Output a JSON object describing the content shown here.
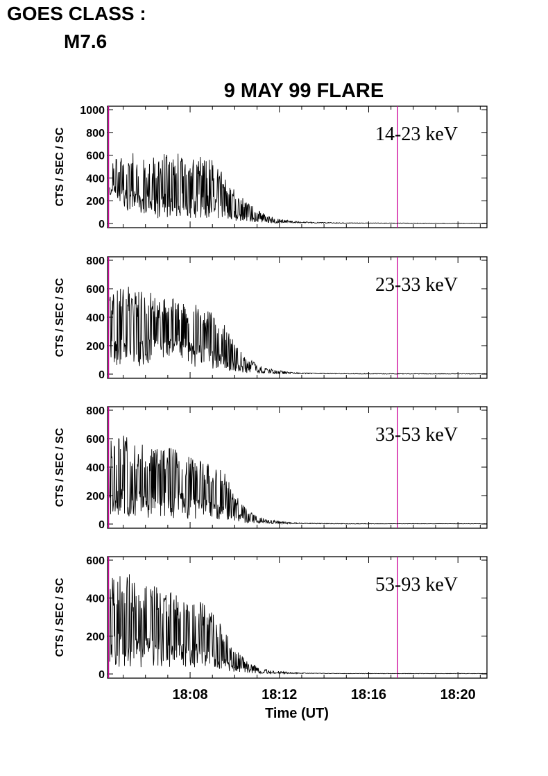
{
  "header": {
    "goes_label": "GOES CLASS :",
    "goes_class": "M7.6"
  },
  "colors": {
    "trace": "#000000",
    "marker": "#cc0099"
  },
  "chart_data": {
    "type": "line",
    "title": "9 MAY 99 FLARE",
    "xlabel": "Time (UT)",
    "x_units": "minutes after 18:00 UT",
    "xlim": [
      4.3,
      21.3
    ],
    "x_ticks": [
      {
        "value": 8,
        "label": "18:08"
      },
      {
        "value": 12,
        "label": "18:12"
      },
      {
        "value": 16,
        "label": "18:16"
      },
      {
        "value": 20,
        "label": "18:20"
      }
    ],
    "marker_times": [
      4.35,
      17.3
    ],
    "grid": false,
    "panels": [
      {
        "band": "14-23 keV",
        "ylabel": "CTS / SEC / SC",
        "ylim": [
          0,
          1000
        ],
        "y_ticks": [
          "0",
          "200",
          "400",
          "600",
          "800",
          "1000"
        ],
        "series": {
          "x": [
            4.4,
            5.0,
            5.5,
            6.0,
            6.5,
            7.0,
            7.5,
            8.0,
            8.5,
            9.0,
            9.5,
            10.0,
            10.5,
            11.0,
            11.5,
            12.0,
            12.5,
            13.0,
            14.0,
            15.0,
            17.0,
            19.0,
            21.3
          ],
          "values": [
            380,
            360,
            340,
            320,
            300,
            320,
            330,
            300,
            310,
            290,
            240,
            160,
            100,
            60,
            35,
            22,
            15,
            10,
            6,
            4,
            3,
            2,
            2
          ],
          "peak_values": [
            540,
            600,
            620,
            560,
            600,
            620,
            640,
            560,
            600,
            560,
            440,
            300,
            200,
            120,
            70,
            40,
            25,
            15,
            10,
            6,
            5,
            4,
            4
          ]
        }
      },
      {
        "band": "23-33 keV",
        "ylabel": "CTS / SEC / SC",
        "ylim": [
          0,
          800
        ],
        "y_ticks": [
          "0",
          "200",
          "400",
          "600",
          "800"
        ],
        "series": {
          "x": [
            4.4,
            5.0,
            5.5,
            6.0,
            6.5,
            7.0,
            7.5,
            8.0,
            8.5,
            9.0,
            9.5,
            10.0,
            10.5,
            11.0,
            11.5,
            12.0,
            12.5,
            13.0,
            14.0,
            15.0,
            17.0,
            19.0,
            21.3
          ],
          "values": [
            280,
            300,
            300,
            310,
            320,
            330,
            320,
            280,
            260,
            230,
            180,
            110,
            60,
            35,
            20,
            12,
            8,
            6,
            4,
            3,
            2,
            2,
            2
          ],
          "peak_values": [
            560,
            640,
            600,
            600,
            560,
            540,
            520,
            500,
            480,
            440,
            360,
            220,
            120,
            70,
            40,
            25,
            15,
            10,
            6,
            5,
            4,
            4,
            4
          ]
        }
      },
      {
        "band": "33-53 keV",
        "ylabel": "CTS / SEC / SC",
        "ylim": [
          0,
          800
        ],
        "y_ticks": [
          "0",
          "200",
          "400",
          "600",
          "800"
        ],
        "series": {
          "x": [
            4.4,
            5.0,
            5.5,
            6.0,
            6.5,
            7.0,
            7.5,
            8.0,
            8.5,
            9.0,
            9.5,
            10.0,
            10.5,
            11.0,
            11.5,
            12.0,
            12.5,
            13.0,
            14.0,
            15.0,
            17.0,
            19.0,
            21.3
          ],
          "values": [
            300,
            310,
            300,
            290,
            280,
            290,
            280,
            240,
            220,
            210,
            190,
            110,
            55,
            30,
            18,
            10,
            7,
            5,
            3,
            2,
            2,
            2,
            2
          ],
          "peak_values": [
            600,
            640,
            560,
            560,
            540,
            540,
            520,
            480,
            440,
            440,
            380,
            220,
            110,
            60,
            35,
            20,
            12,
            8,
            5,
            4,
            3,
            3,
            3
          ]
        }
      },
      {
        "band": "53-93 keV",
        "ylabel": "CTS / SEC / SC",
        "ylim": [
          0,
          600
        ],
        "y_ticks": [
          "0",
          "200",
          "400",
          "600"
        ],
        "series": {
          "x": [
            4.4,
            5.0,
            5.5,
            6.0,
            6.5,
            7.0,
            7.5,
            8.0,
            8.5,
            9.0,
            9.5,
            10.0,
            10.5,
            11.0,
            11.5,
            12.0,
            12.5,
            13.0,
            14.0,
            15.0,
            17.0,
            19.0,
            21.3
          ],
          "values": [
            250,
            260,
            240,
            240,
            230,
            230,
            220,
            200,
            190,
            170,
            130,
            75,
            40,
            22,
            12,
            8,
            5,
            4,
            3,
            2,
            2,
            2,
            2
          ],
          "peak_values": [
            500,
            560,
            520,
            480,
            460,
            440,
            420,
            400,
            380,
            320,
            240,
            140,
            75,
            40,
            22,
            14,
            9,
            6,
            4,
            3,
            3,
            3,
            3
          ]
        }
      }
    ]
  }
}
